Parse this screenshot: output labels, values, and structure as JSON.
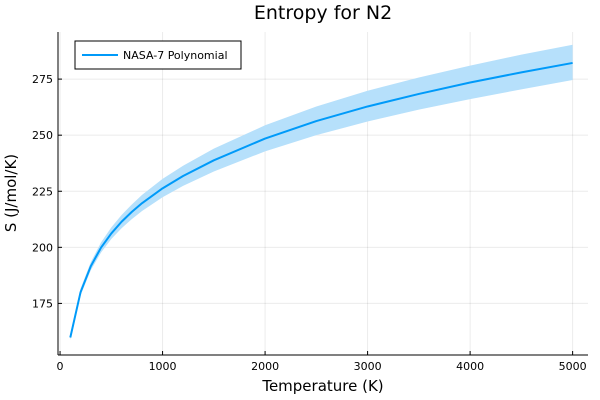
{
  "chart_data": {
    "type": "line",
    "title": "Entropy for N2",
    "xlabel": "Temperature (K)",
    "ylabel": "S (J/mol/K)",
    "xlim": [
      -20,
      5150
    ],
    "ylim": [
      152,
      296
    ],
    "xticks": [
      0,
      1000,
      2000,
      3000,
      4000,
      5000
    ],
    "yticks": [
      175,
      200,
      225,
      250,
      275
    ],
    "grid": true,
    "legend_position": "top-left",
    "series": [
      {
        "name": "NASA-7 Polynomial",
        "color": "#009af9",
        "band_color": "#b6e0fb",
        "x": [
          100,
          200,
          300,
          400,
          500,
          600,
          700,
          800,
          1000,
          1200,
          1500,
          2000,
          2500,
          3000,
          3500,
          4000,
          4500,
          5000
        ],
        "y": [
          159.8,
          180.0,
          191.6,
          199.9,
          206.2,
          211.4,
          215.8,
          219.7,
          226.3,
          231.8,
          238.8,
          248.5,
          256.3,
          262.8,
          268.4,
          273.5,
          278.0,
          282.2
        ],
        "lower": [
          158.7,
          178.5,
          189.8,
          197.7,
          203.7,
          208.5,
          212.6,
          216.2,
          222.3,
          227.4,
          233.8,
          242.8,
          250.0,
          256.1,
          261.4,
          266.1,
          270.4,
          274.6
        ],
        "upper": [
          161.0,
          181.6,
          193.4,
          202.2,
          208.9,
          214.4,
          219.1,
          223.4,
          230.5,
          236.4,
          244.0,
          254.4,
          262.8,
          269.8,
          275.7,
          281.0,
          285.9,
          290.3
        ]
      }
    ]
  }
}
